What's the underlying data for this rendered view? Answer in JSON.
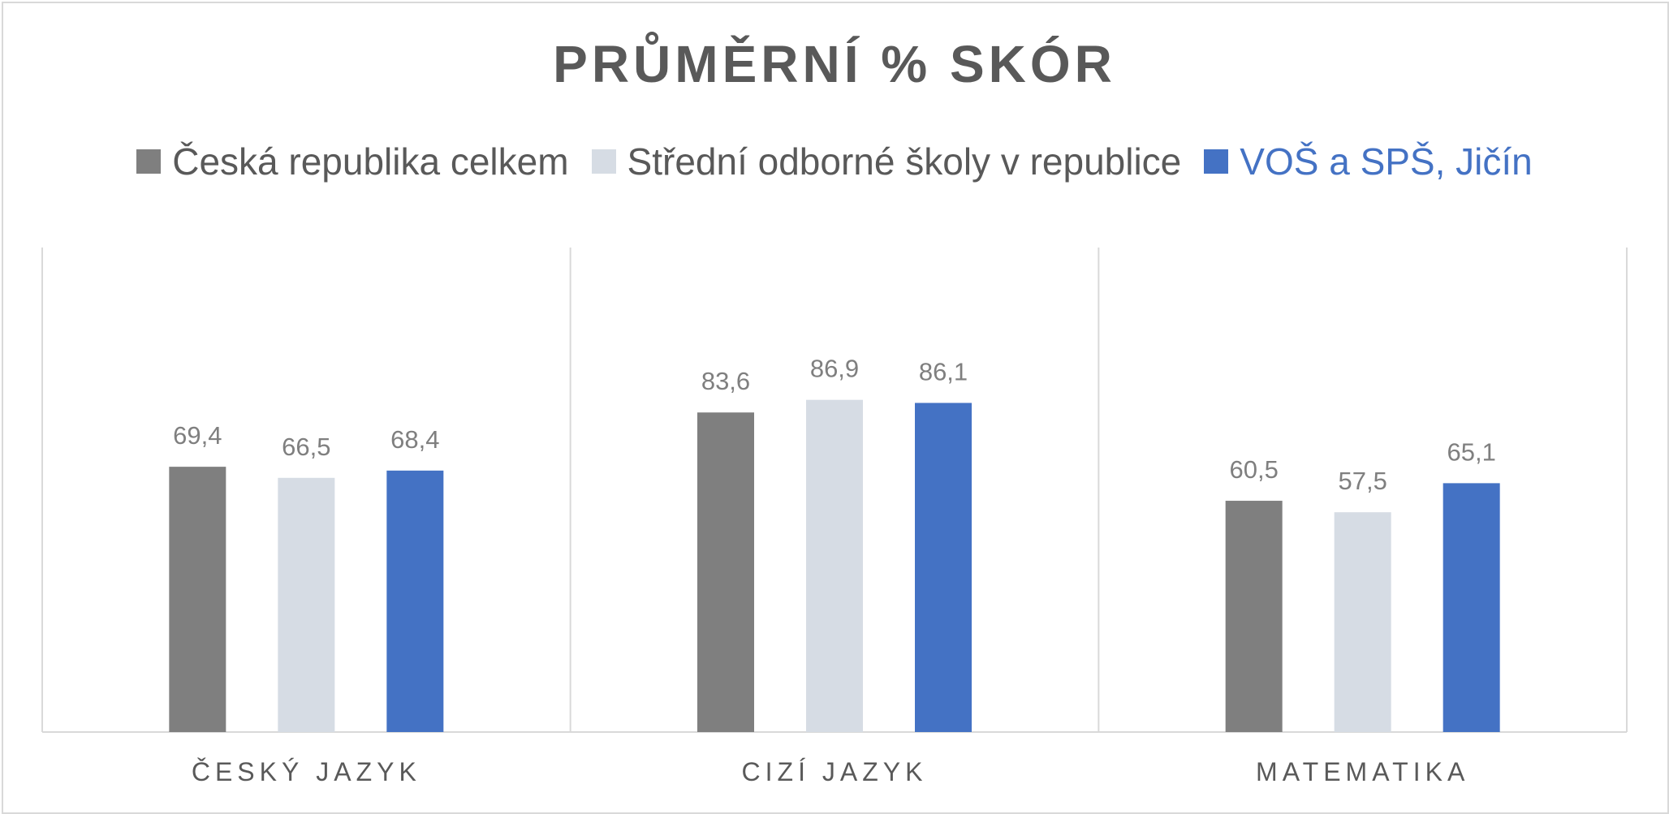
{
  "chart_data": {
    "type": "bar",
    "title": "PRŮMĚRNÍ % SKÓR",
    "categories": [
      "ČESKÝ JAZYK",
      "CIZÍ JAZYK",
      "MATEMATIKA"
    ],
    "series": [
      {
        "name": "Česká republika celkem",
        "values": [
          69.4,
          83.6,
          60.5
        ],
        "labels": [
          "69,4",
          "83,6",
          "60,5"
        ],
        "color": "#7f7f7f"
      },
      {
        "name": "Střední odborné školy v republice",
        "values": [
          66.5,
          86.9,
          57.5
        ],
        "labels": [
          "66,5",
          "86,9",
          "57,5"
        ],
        "color": "#d6dce4"
      },
      {
        "name": "VOŠ a SPŠ, Jičín",
        "values": [
          68.4,
          86.1,
          65.1
        ],
        "labels": [
          "68,4",
          "86,1",
          "65,1"
        ],
        "color": "#4472c4"
      }
    ],
    "ylim": [
      0,
      100
    ],
    "grid": false,
    "legend_position": "top",
    "xlabel": "",
    "ylabel": ""
  },
  "colors": {
    "text": "#595959",
    "data_label": "#7f7f7f",
    "axis": "#d9d9d9",
    "highlight_legend_text": "#4472c4"
  }
}
